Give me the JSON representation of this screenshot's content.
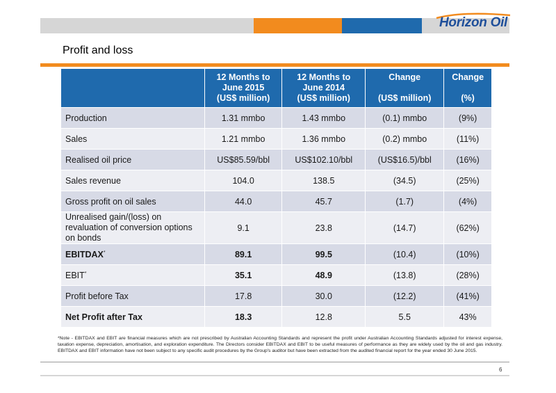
{
  "brand": {
    "logo_text": "Horizon Oil",
    "colors": {
      "orange": "#f28b1e",
      "blue": "#1f6aad",
      "gray": "#d6d6d6",
      "row_shade": "#d7dae6",
      "row_plain": "#edeef3"
    }
  },
  "title": "Profit and loss",
  "table": {
    "headers": [
      {
        "lines": [
          "12 Months to",
          "June 2015",
          "(US$ million)"
        ]
      },
      {
        "lines": [
          "12 Months to",
          "June 2014",
          "(US$ million)"
        ]
      },
      {
        "lines": [
          "Change",
          "",
          "(US$ million)"
        ]
      },
      {
        "lines": [
          "Change",
          "",
          "(%)"
        ]
      }
    ],
    "rows": [
      {
        "label": "Production",
        "fy15": "1.31 mmbo",
        "fy14": "1.43 mmbo",
        "change": "(0.1) mmbo",
        "pct": "(9%)"
      },
      {
        "label": "Sales",
        "fy15": "1.21 mmbo",
        "fy14": "1.36 mmbo",
        "change": "(0.2) mmbo",
        "pct": "(11%)"
      },
      {
        "label": "Realised oil price",
        "fy15": "US$85.59/bbl",
        "fy14": "US$102.10/bbl",
        "change": "(US$16.5)/bbl",
        "pct": "(16%)"
      },
      {
        "label": "Sales revenue",
        "fy15": "104.0",
        "fy14": "138.5",
        "change": "(34.5)",
        "pct": "(25%)"
      },
      {
        "label": "Gross profit on oil sales",
        "fy15": "44.0",
        "fy14": "45.7",
        "change": "(1.7)",
        "pct": "(4%)"
      },
      {
        "label": "Unrealised gain/(loss) on revaluation of conversion options on bonds",
        "fy15": "9.1",
        "fy14": "23.8",
        "change": "(14.7)",
        "pct": "(62%)"
      },
      {
        "label": "EBITDAX",
        "marker": "*",
        "fy15": "89.1",
        "fy14": "99.5",
        "change": "(10.4)",
        "pct": "(10%)"
      },
      {
        "label": "EBIT",
        "marker": "*",
        "fy15": "35.1",
        "fy14": "48.9",
        "change": "(13.8)",
        "pct": "(28%)"
      },
      {
        "label": "Profit before Tax",
        "fy15": "17.8",
        "fy14": "30.0",
        "change": "(12.2)",
        "pct": "(41%)"
      },
      {
        "label": "Net Profit after Tax",
        "fy15": "18.3",
        "fy14": "12.8",
        "change": "5.5",
        "pct": "43%"
      }
    ]
  },
  "footnote": "*Note - EBITDAX and EBIT are financial measures which are not prescribed by Australian Accounting Standards and represent the profit under Australian Accounting Standards adjusted for interest expense, taxation expense, depreciation, amortisation, and exploration expenditure. The Directors consider EBITDAX and EBIT to be useful measures of performance as they are widely used by the oil and gas industry. EBITDAX and EBIT information have not been subject to any specific audit procedures by the Group's auditor but have been extracted from the audited financial report for the year ended 30 June 2015.",
  "page_number": "6"
}
